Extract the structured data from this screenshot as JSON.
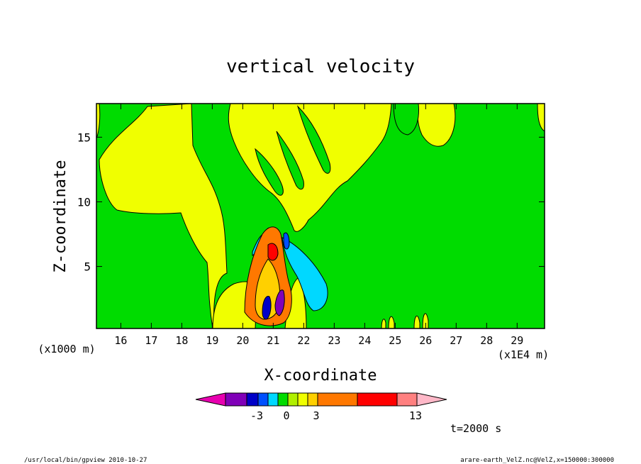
{
  "chart_data": {
    "type": "heatmap",
    "title": "vertical velocity",
    "xlabel": "X-coordinate",
    "ylabel": "Z-coordinate",
    "x_unit_label": "(x1E4 m)",
    "y_unit_label": "(x1000 m)",
    "xlim": [
      15.2,
      29.9
    ],
    "ylim": [
      0.2,
      17.6
    ],
    "x_ticks": [
      16,
      17,
      18,
      19,
      20,
      21,
      22,
      23,
      24,
      25,
      26,
      27,
      28,
      29
    ],
    "y_ticks": [
      5,
      10,
      15
    ],
    "colorbar": {
      "colors": [
        "#e800b0",
        "#8000b8",
        "#0000c8",
        "#0050ff",
        "#00d8ff",
        "#00dc00",
        "#b0f000",
        "#f0ff00",
        "#ffd000",
        "#ff7800",
        "#ff0000",
        "#ff8080",
        "#ffb8c8"
      ],
      "tick_labels": [
        "-3",
        "0",
        "3",
        "13"
      ]
    },
    "time_label": "t=2000 s"
  },
  "footer": {
    "left": "/usr/local/bin/gpview  2010-10-27",
    "right": "arare-earth_VelZ.nc@VelZ,x=150000:300000"
  }
}
